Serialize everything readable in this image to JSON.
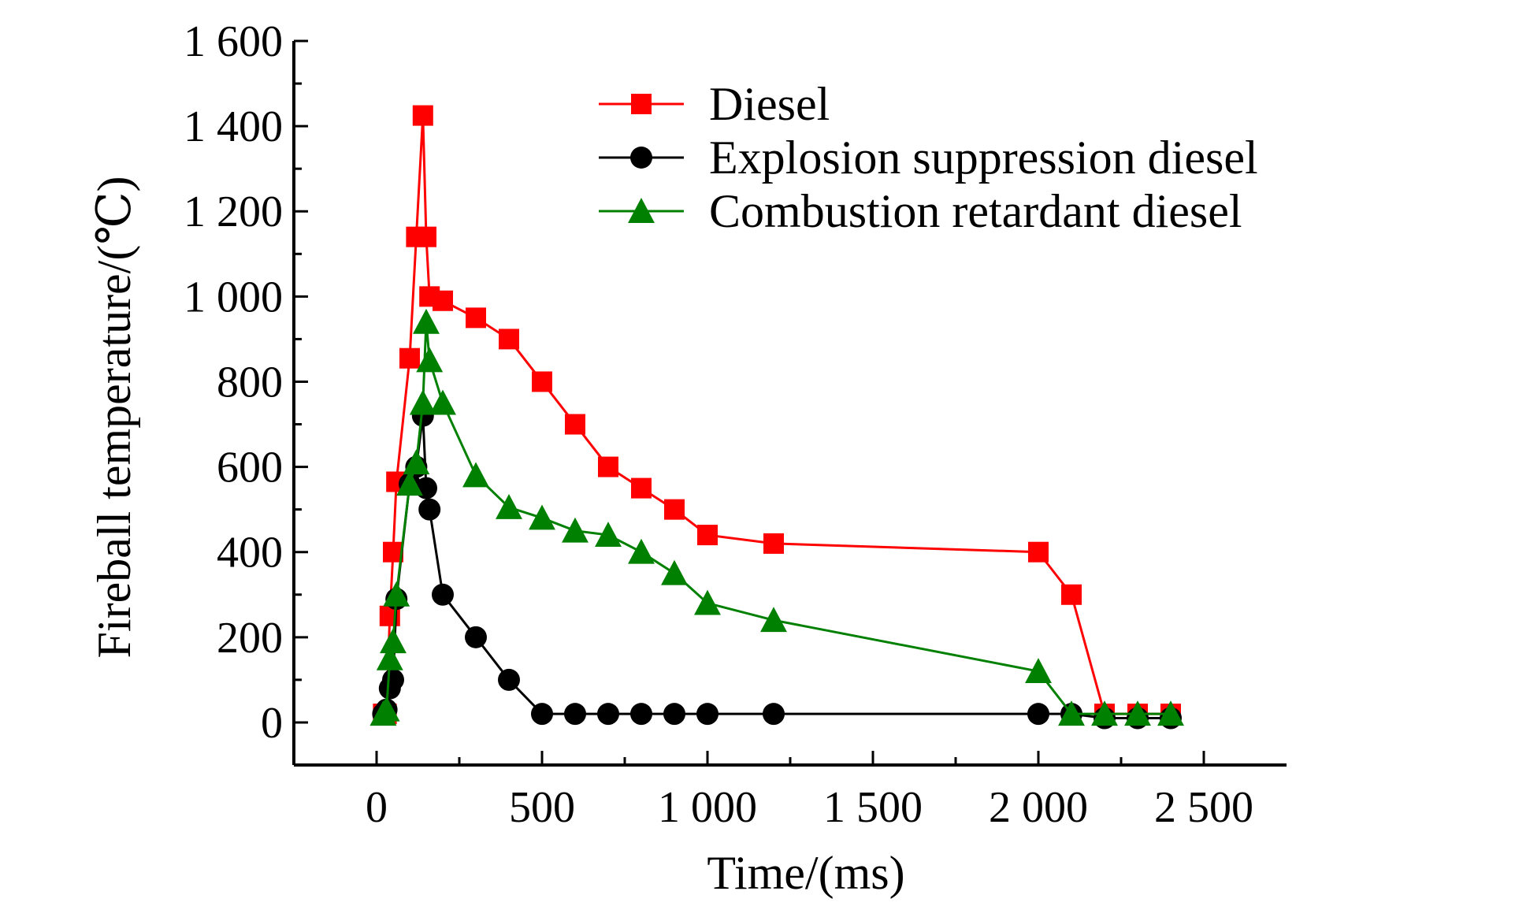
{
  "chart_data": {
    "type": "line",
    "title": "",
    "xlabel": "Time/(ms)",
    "ylabel": "Fireball temperature/(℃)",
    "xlim": [
      -250,
      2750
    ],
    "ylim": [
      -100,
      1600
    ],
    "x_ticks": [
      0,
      500,
      1000,
      1500,
      2000,
      2500
    ],
    "x_tick_labels": [
      "0",
      "500",
      "1 000",
      "1 500",
      "2 000",
      "2 500"
    ],
    "y_ticks": [
      0,
      200,
      400,
      600,
      800,
      1000,
      1200,
      1400,
      1600
    ],
    "y_tick_labels": [
      "0",
      "200",
      "400",
      "600",
      "800",
      "1 000",
      "1 200",
      "1 400",
      "1 600"
    ],
    "grid": false,
    "legend_position": "top-right",
    "series": [
      {
        "name": "Diesel",
        "color": "#ff0000",
        "marker": "square",
        "x": [
          20,
          30,
          40,
          50,
          60,
          100,
          120,
          140,
          150,
          160,
          200,
          300,
          400,
          500,
          600,
          700,
          800,
          900,
          1000,
          1200,
          2000,
          2100,
          2200,
          2300,
          2400
        ],
        "y": [
          20,
          20,
          250,
          400,
          565,
          855,
          1140,
          1425,
          1140,
          1000,
          990,
          950,
          900,
          800,
          700,
          600,
          550,
          500,
          440,
          420,
          400,
          300,
          20,
          20,
          20
        ]
      },
      {
        "name": "Explosion suppression diesel",
        "color": "#000000",
        "marker": "circle",
        "x": [
          20,
          30,
          40,
          50,
          60,
          100,
          120,
          140,
          150,
          160,
          200,
          300,
          400,
          500,
          600,
          700,
          800,
          900,
          1000,
          1200,
          2000,
          2100,
          2200,
          2300,
          2400
        ],
        "y": [
          20,
          30,
          80,
          100,
          290,
          560,
          600,
          720,
          550,
          500,
          300,
          200,
          100,
          20,
          20,
          20,
          20,
          20,
          20,
          20,
          20,
          20,
          10,
          10,
          10
        ]
      },
      {
        "name": "Combustion retardant diesel",
        "color": "#008000",
        "marker": "triangle",
        "x": [
          20,
          30,
          40,
          50,
          60,
          100,
          120,
          140,
          150,
          160,
          200,
          300,
          400,
          500,
          600,
          700,
          800,
          900,
          1000,
          1200,
          2000,
          2100,
          2200,
          2300,
          2400
        ],
        "y": [
          20,
          30,
          150,
          190,
          300,
          560,
          610,
          750,
          940,
          850,
          750,
          580,
          505,
          480,
          450,
          440,
          400,
          350,
          280,
          240,
          120,
          20,
          20,
          20,
          20
        ]
      }
    ]
  }
}
